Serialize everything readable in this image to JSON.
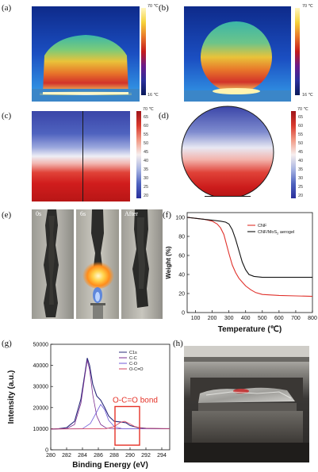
{
  "panels": {
    "a": "(a)",
    "b": "(b)",
    "c": "(c)",
    "d": "(d)",
    "e": "(e)",
    "f": "(f)",
    "g": "(g)",
    "h": "(h)"
  },
  "thermal": {
    "max_label": "70 ℃",
    "min_label": "16 ℃"
  },
  "sim_colorbar": {
    "unit_label": "70 ℃",
    "ticks": [
      "65",
      "60",
      "55",
      "50",
      "45",
      "40",
      "35",
      "30",
      "25",
      "20"
    ]
  },
  "photos": {
    "labels": [
      "0s",
      "6s",
      "After"
    ]
  },
  "colors": {
    "hot": "#c51b1b",
    "cold": "#2a2f9b",
    "tga_cnf": "#e0312b",
    "tga_composite": "#111111",
    "xps_total": "#2b2b7a",
    "xps_cc": "#7a2b8f",
    "xps_co": "#6f5ad8",
    "xps_oco": "#d1405e",
    "bond_box": "#e53228"
  },
  "chart_data": [
    {
      "type": "line",
      "panel": "(f)",
      "xlabel": "Temperature (℃)",
      "ylabel": "Weight (%)",
      "xlim": [
        50,
        800
      ],
      "ylim": [
        0,
        105
      ],
      "x_ticks": [
        "100",
        "200",
        "300",
        "400",
        "500",
        "600",
        "700",
        "800"
      ],
      "y_ticks": [
        "0",
        "20",
        "40",
        "60",
        "80",
        "100"
      ],
      "legend_position": "top-right",
      "series": [
        {
          "name": "CNF",
          "points": [
            [
              50,
              100
            ],
            [
              100,
              99
            ],
            [
              150,
              98
            ],
            [
              200,
              96
            ],
            [
              230,
              93
            ],
            [
              250,
              89
            ],
            [
              270,
              82
            ],
            [
              285,
              72
            ],
            [
              300,
              62
            ],
            [
              320,
              50
            ],
            [
              340,
              42
            ],
            [
              360,
              36
            ],
            [
              380,
              32
            ],
            [
              400,
              28
            ],
            [
              430,
              24
            ],
            [
              460,
              21
            ],
            [
              500,
              19
            ],
            [
              600,
              18
            ],
            [
              700,
              17.5
            ],
            [
              800,
              17
            ]
          ]
        },
        {
          "name": "CNF/MoS2 aerogel",
          "name_main": "CNF/MoS",
          "name_sub": "2",
          "name_tail": " aerogel",
          "points": [
            [
              50,
              100
            ],
            [
              100,
              99
            ],
            [
              150,
              98
            ],
            [
              200,
              97
            ],
            [
              250,
              96
            ],
            [
              280,
              95
            ],
            [
              300,
              93
            ],
            [
              320,
              87
            ],
            [
              340,
              77
            ],
            [
              360,
              65
            ],
            [
              380,
              53
            ],
            [
              400,
              45
            ],
            [
              420,
              40
            ],
            [
              450,
              38
            ],
            [
              500,
              37
            ],
            [
              600,
              37
            ],
            [
              700,
              37
            ],
            [
              800,
              37
            ]
          ]
        }
      ]
    },
    {
      "type": "line",
      "panel": "(g)",
      "xlabel": "Binding Energy (eV)",
      "ylabel": "Intensity (a.u.)",
      "xlim": [
        280,
        295
      ],
      "ylim": [
        0,
        50000
      ],
      "x_ticks": [
        "280",
        "282",
        "284",
        "286",
        "288",
        "290",
        "292",
        "294"
      ],
      "y_ticks": [
        "0",
        "10000",
        "20000",
        "30000",
        "40000",
        "50000"
      ],
      "legend_position": "top-right",
      "annotation": "O-C=O bond",
      "series": [
        {
          "name": "C1s",
          "points": [
            [
              280,
              9800
            ],
            [
              281,
              10000
            ],
            [
              282,
              10500
            ],
            [
              283,
              13500
            ],
            [
              283.8,
              24000
            ],
            [
              284.3,
              36000
            ],
            [
              284.6,
              43500
            ],
            [
              284.9,
              40000
            ],
            [
              285.3,
              31000
            ],
            [
              285.8,
              25500
            ],
            [
              286.3,
              23500
            ],
            [
              286.8,
              20000
            ],
            [
              287.3,
              16000
            ],
            [
              288,
              13500
            ],
            [
              288.8,
              13200
            ],
            [
              289.5,
              12800
            ],
            [
              290,
              11500
            ],
            [
              291,
              10500
            ],
            [
              292,
              10200
            ],
            [
              294,
              10000
            ],
            [
              295,
              10000
            ]
          ]
        },
        {
          "name": "C-C",
          "points": [
            [
              280,
              9800
            ],
            [
              282,
              10000
            ],
            [
              283,
              12000
            ],
            [
              283.8,
              22000
            ],
            [
              284.3,
              35000
            ],
            [
              284.6,
              42500
            ],
            [
              284.9,
              38000
            ],
            [
              285.3,
              26000
            ],
            [
              285.8,
              16000
            ],
            [
              286.3,
              12000
            ],
            [
              287,
              10300
            ],
            [
              288,
              10000
            ],
            [
              295,
              10000
            ]
          ]
        },
        {
          "name": "C-O",
          "points": [
            [
              280,
              9800
            ],
            [
              284,
              10000
            ],
            [
              285,
              12500
            ],
            [
              285.8,
              18000
            ],
            [
              286.3,
              21500
            ],
            [
              286.8,
              19000
            ],
            [
              287.3,
              14000
            ],
            [
              288,
              11000
            ],
            [
              289,
              10000
            ],
            [
              295,
              10000
            ]
          ]
        },
        {
          "name": "O-C=O",
          "points": [
            [
              280,
              9800
            ],
            [
              287,
              10000
            ],
            [
              288,
              11000
            ],
            [
              288.8,
              13000
            ],
            [
              289.3,
              13500
            ],
            [
              289.9,
              12500
            ],
            [
              290.6,
              11000
            ],
            [
              291.5,
              10200
            ],
            [
              295,
              10000
            ]
          ]
        }
      ]
    }
  ]
}
